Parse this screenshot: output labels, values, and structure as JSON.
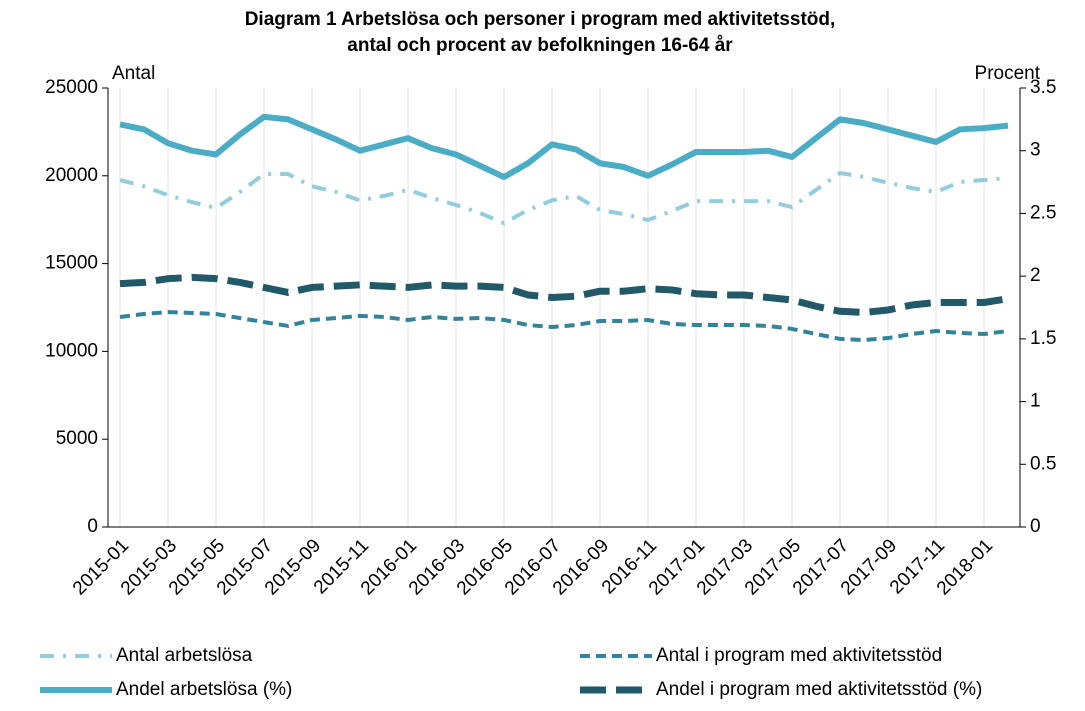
{
  "chart_data": {
    "type": "line",
    "title": [
      "Diagram 1 Arbetslösa och personer i program med aktivitetsstöd,",
      "antal och procent av befolkningen 16-64 år"
    ],
    "ylabel": "Antal",
    "y2label": "Procent",
    "categories": [
      "2015-01",
      null,
      "2015-03",
      null,
      "2015-05",
      null,
      "2015-07",
      null,
      "2015-09",
      null,
      "2015-11",
      null,
      "2016-01",
      null,
      "2016-03",
      null,
      "2016-05",
      null,
      "2016-07",
      null,
      "2016-09",
      null,
      "2016-11",
      null,
      "2017-01",
      null,
      "2017-03",
      null,
      "2017-05",
      null,
      "2017-07",
      null,
      "2017-09",
      null,
      "2017-11",
      null,
      "2018-01",
      null
    ],
    "ylim": [
      0,
      25000
    ],
    "yticks": [
      0,
      5000,
      10000,
      15000,
      20000,
      25000
    ],
    "y2lim": [
      0,
      3.5
    ],
    "y2ticks": [
      0,
      0.5,
      1,
      1.5,
      2,
      2.5,
      3,
      3.5
    ],
    "grid": true,
    "legend": "bottom",
    "series": [
      {
        "name": "Antal arbetslösa",
        "color": "#93cddd",
        "style": "dashdot",
        "values": [
          19760,
          19400,
          18900,
          18500,
          18170,
          19080,
          20100,
          20100,
          19400,
          19080,
          18600,
          18850,
          19200,
          18740,
          18340,
          17880,
          17300,
          18050,
          18600,
          18850,
          18050,
          17820,
          17480,
          18000,
          18560,
          18560,
          18560,
          18560,
          18220,
          19200,
          20160,
          19930,
          19600,
          19300,
          19080,
          19650,
          19760,
          19870
        ]
      },
      {
        "name": "Antal i program med aktivitetsstöd",
        "color": "#31849b",
        "style": "dashed",
        "values": [
          11960,
          12130,
          12240,
          12190,
          12130,
          11900,
          11670,
          11450,
          11790,
          11900,
          12020,
          11960,
          11790,
          11960,
          11850,
          11900,
          11790,
          11500,
          11390,
          11500,
          11730,
          11730,
          11790,
          11560,
          11500,
          11500,
          11500,
          11450,
          11280,
          10990,
          10710,
          10650,
          10760,
          10990,
          11160,
          11050,
          10990,
          11160
        ]
      },
      {
        "name": "Andel arbetslösa (%)",
        "color": "#4bacc6",
        "style": "solid",
        "axis": "y2",
        "values": [
          3.21,
          3.17,
          3.06,
          3.0,
          2.97,
          3.13,
          3.27,
          3.25,
          3.17,
          3.09,
          3.0,
          3.05,
          3.1,
          3.02,
          2.97,
          2.88,
          2.79,
          2.9,
          3.05,
          3.01,
          2.9,
          2.87,
          2.8,
          2.89,
          2.99,
          2.99,
          2.99,
          3.0,
          2.95,
          3.1,
          3.25,
          3.22,
          3.17,
          3.12,
          3.07,
          3.17,
          3.18,
          3.2
        ]
      },
      {
        "name": "Andel i program med aktivitetsstöd (%)",
        "color": "#215968",
        "style": "longdash",
        "axis": "y2",
        "values": [
          1.94,
          1.95,
          1.98,
          1.99,
          1.98,
          1.95,
          1.91,
          1.87,
          1.91,
          1.92,
          1.93,
          1.92,
          1.91,
          1.93,
          1.92,
          1.92,
          1.91,
          1.85,
          1.83,
          1.84,
          1.88,
          1.88,
          1.9,
          1.89,
          1.86,
          1.85,
          1.85,
          1.83,
          1.81,
          1.76,
          1.72,
          1.71,
          1.73,
          1.77,
          1.79,
          1.79,
          1.79,
          1.82
        ]
      }
    ]
  }
}
